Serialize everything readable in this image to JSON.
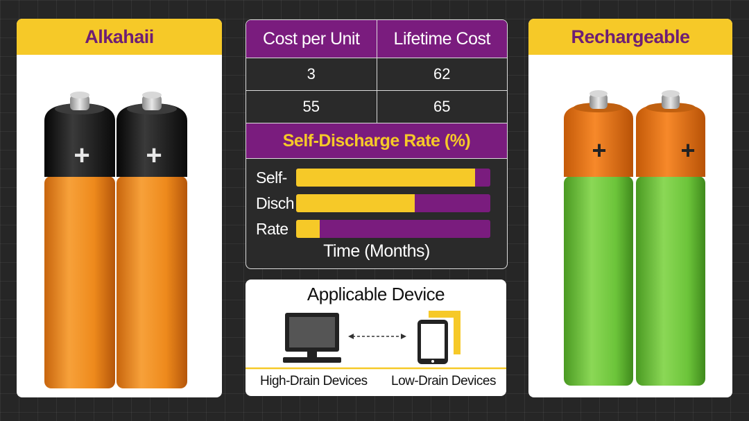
{
  "left_card": {
    "title": "Alkahaii"
  },
  "right_card": {
    "title": "Rechargeable"
  },
  "battery_plus": "+",
  "cost_table": {
    "headers": [
      "Cost per Unit",
      "Lifetime Cost"
    ],
    "rows": [
      [
        "3",
        "62"
      ],
      [
        "55",
        "65"
      ]
    ]
  },
  "self_discharge": {
    "title": "Self-Discharge Rate (%)",
    "bars": [
      {
        "label": "Self-",
        "fill_fraction": 0.92
      },
      {
        "label": "Disсh",
        "fill_fraction": 0.61
      },
      {
        "label": "Rate",
        "fill_fraction": 0.12
      }
    ],
    "x_label": "Time (Months)"
  },
  "devices": {
    "title": "Applicable Device",
    "high_drain_label": "High-Drain Devices",
    "low_drain_label": "Low-Drain Devices",
    "monitor_icon": "monitor-icon",
    "tablet_icon": "tablet-icon"
  },
  "colors": {
    "yellow": "#f6c928",
    "purple": "#7a1c7e",
    "battery_orange": "#f08a1c",
    "battery_green": "#6cc43a"
  }
}
